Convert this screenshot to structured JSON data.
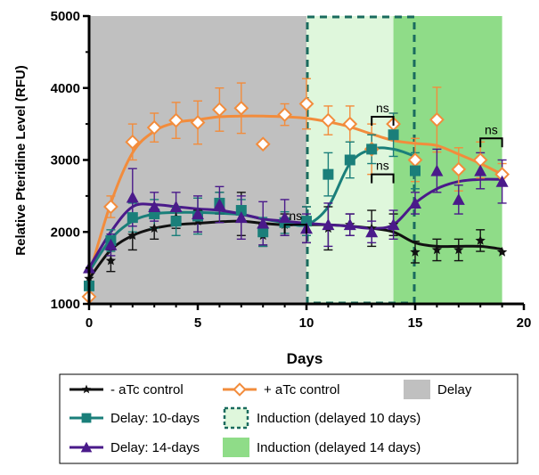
{
  "chart_data": {
    "type": "line",
    "title": "",
    "xlabel": "Days",
    "ylabel": "Relative Pteridine Level (RFU)",
    "xlim": [
      0,
      20
    ],
    "ylim": [
      1000,
      5000
    ],
    "x_ticks": [
      "0",
      "5",
      "10",
      "15",
      "20"
    ],
    "y_ticks": [
      "1000",
      "2000",
      "3000",
      "4000",
      "5000"
    ],
    "grid": false,
    "legend_position": "bottom",
    "regions": [
      {
        "name": "Delay",
        "x": [
          0,
          10
        ],
        "color": "#c0c0c0"
      },
      {
        "name": "Induction (delayed 10 days)",
        "x": [
          10,
          15
        ],
        "color": "#dff7dc",
        "border": "#1a6b5e"
      },
      {
        "name": "Induction (delayed 14 days)",
        "x": [
          14,
          19
        ],
        "color": "#8fdc88"
      }
    ],
    "series": [
      {
        "name": "- aTc control",
        "color": "#111111",
        "marker": "star",
        "x": [
          0,
          1,
          2,
          3,
          4,
          5,
          6,
          7,
          8,
          9,
          10,
          11,
          12,
          13,
          14,
          15,
          16,
          17,
          18,
          19
        ],
        "values": [
          1350,
          1600,
          1950,
          2050,
          2200,
          2150,
          2400,
          2250,
          1950,
          2100,
          2100,
          2050,
          2100,
          2050,
          2100,
          1720,
          1750,
          1750,
          1880,
          1720
        ],
        "errors": [
          0,
          150,
          200,
          150,
          150,
          150,
          150,
          300,
          150,
          150,
          250,
          300,
          150,
          250,
          150,
          150,
          150,
          150,
          150,
          0
        ],
        "fit": [
          1350,
          1750,
          1950,
          2050,
          2100,
          2120,
          2140,
          2150,
          2120,
          2100,
          2100,
          2100,
          2080,
          2050,
          2000,
          1850,
          1800,
          1800,
          1800,
          1760
        ]
      },
      {
        "name": "+ aTc control",
        "color": "#f28c3c",
        "marker": "diamond",
        "x": [
          0,
          1,
          2,
          3,
          4,
          5,
          6,
          7,
          8,
          9,
          10,
          11,
          12,
          13,
          14,
          15,
          16,
          17,
          18,
          19
        ],
        "values": [
          1100,
          2350,
          3250,
          3450,
          3550,
          3520,
          3700,
          3720,
          3220,
          3630,
          3780,
          3550,
          3500,
          3150,
          3500,
          3000,
          3560,
          2870,
          3000,
          2800
        ],
        "errors": [
          0,
          150,
          250,
          200,
          250,
          300,
          300,
          350,
          0,
          150,
          350,
          200,
          250,
          350,
          150,
          300,
          450,
          300,
          250,
          150
        ],
        "fit": [
          1400,
          2400,
          3100,
          3400,
          3520,
          3560,
          3600,
          3610,
          3610,
          3600,
          3580,
          3530,
          3460,
          3360,
          3270,
          3230,
          3200,
          3080,
          2950,
          2800
        ]
      },
      {
        "name": "Delay: 10-days",
        "color": "#1a7f7a",
        "marker": "square",
        "x": [
          0,
          1,
          2,
          3,
          4,
          5,
          6,
          7,
          8,
          9,
          10,
          11,
          12,
          13,
          14,
          15
        ],
        "values": [
          1250,
          1880,
          2200,
          2250,
          2150,
          2220,
          2400,
          2300,
          2000,
          2130,
          2150,
          2800,
          3000,
          3150,
          3350,
          2850
        ],
        "errors": [
          0,
          150,
          200,
          200,
          200,
          250,
          150,
          150,
          200,
          150,
          200,
          300,
          250,
          200,
          300,
          250
        ],
        "fit": [
          1450,
          1900,
          2150,
          2250,
          2270,
          2270,
          2260,
          2240,
          2180,
          2130,
          2100,
          2350,
          2950,
          3150,
          3150,
          3050
        ]
      },
      {
        "name": "Delay: 14-days",
        "color": "#4a1a8a",
        "marker": "triangle",
        "x": [
          0,
          1,
          2,
          3,
          4,
          5,
          6,
          7,
          8,
          9,
          10,
          11,
          12,
          13,
          14,
          15,
          16,
          17,
          18,
          19
        ],
        "values": [
          1500,
          1820,
          2480,
          2350,
          2350,
          2250,
          2380,
          2200,
          2120,
          2200,
          2050,
          2100,
          2100,
          2000,
          2100,
          2400,
          2850,
          2450,
          2850,
          2700
        ],
        "errors": [
          0,
          150,
          400,
          200,
          200,
          250,
          250,
          300,
          300,
          250,
          200,
          300,
          150,
          150,
          200,
          150,
          300,
          200,
          250,
          300
        ],
        "fit": [
          1500,
          2000,
          2350,
          2380,
          2350,
          2320,
          2300,
          2250,
          2180,
          2150,
          2120,
          2100,
          2080,
          2050,
          2100,
          2400,
          2600,
          2700,
          2730,
          2730
        ]
      }
    ],
    "annotations": [
      {
        "text": "ns",
        "x": [
          9,
          10
        ],
        "y": 2100
      },
      {
        "text": "ns",
        "x": [
          13,
          14
        ],
        "y": 3600
      },
      {
        "text": "ns",
        "x": [
          13,
          14
        ],
        "y": 2800
      },
      {
        "text": "ns",
        "x": [
          18,
          19
        ],
        "y": 3300
      }
    ]
  },
  "legend": {
    "items": [
      {
        "label": "- aTc control",
        "kind": "line",
        "color": "#111111",
        "marker": "star"
      },
      {
        "label": "+ aTc control",
        "kind": "line",
        "color": "#f28c3c",
        "marker": "diamond"
      },
      {
        "label": "Delay",
        "kind": "box",
        "color": "#c0c0c0"
      },
      {
        "label": "Delay: 10-days",
        "kind": "line",
        "color": "#1a7f7a",
        "marker": "square"
      },
      {
        "label": "Induction (delayed 10 days)",
        "kind": "dashbox",
        "color": "#dff7dc",
        "border": "#1a6b5e"
      },
      {
        "label": "Delay: 14-days",
        "kind": "line",
        "color": "#4a1a8a",
        "marker": "triangle"
      },
      {
        "label": "Induction (delayed 14 days)",
        "kind": "box",
        "color": "#8fdc88"
      }
    ]
  }
}
